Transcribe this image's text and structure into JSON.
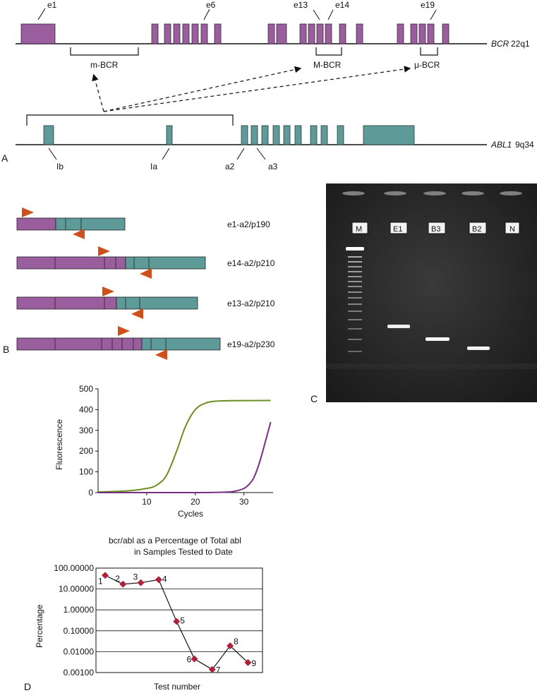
{
  "panels": {
    "a": "A",
    "b": "B",
    "c": "C",
    "d": "D"
  },
  "colors": {
    "bcr": "#9a5d9e",
    "abl": "#5e9a98",
    "primer": "#d0501c",
    "curve_green": "#6b8e23",
    "curve_purple": "#7b2d84",
    "point": "#b0203a"
  },
  "panel_a": {
    "bcr_gene": "BCR",
    "bcr_locus": "22q1",
    "abl_gene": "ABL1",
    "abl_locus": "9q34",
    "exon_labels": [
      "e1",
      "e6",
      "e13",
      "e14",
      "e19"
    ],
    "breakpoint_regions": [
      "m-BCR",
      "M-BCR",
      "μ-BCR"
    ],
    "abl_labels": [
      "Ib",
      "Ia",
      "a2",
      "a3"
    ]
  },
  "panel_b": {
    "transcripts": [
      "e1-a2/p190",
      "e14-a2/p210",
      "e13-a2/p210",
      "e19-a2/p230"
    ]
  },
  "panel_c": {
    "lanes": [
      "M",
      "E1",
      "B3",
      "B2",
      "N"
    ]
  },
  "chart_data": [
    {
      "type": "line",
      "xlabel": "Cycles",
      "ylabel": "Fluorescence",
      "xlim": [
        0,
        36
      ],
      "ylim": [
        0,
        500
      ],
      "xticks": [
        10,
        20,
        30
      ],
      "yticks": [
        0,
        100,
        200,
        300,
        400,
        500
      ],
      "series": [
        {
          "x": [
            0,
            6,
            10,
            12,
            14,
            16,
            18,
            20,
            22,
            24,
            28,
            35.5
          ],
          "values": [
            3,
            8,
            20,
            35,
            80,
            190,
            320,
            400,
            430,
            440,
            443,
            444
          ]
        },
        {
          "x": [
            0,
            20,
            26,
            28,
            30,
            31,
            32,
            33,
            34,
            35.5
          ],
          "values": [
            0,
            0,
            2,
            6,
            20,
            38,
            70,
            130,
            210,
            340
          ]
        }
      ]
    },
    {
      "type": "line",
      "title": "bcr/abl as a Percentage of Total abl\nin Samples Tested to Date",
      "title_lines": [
        "bcr/abl as a Percentage of Total abl",
        "in Samples Tested to Date"
      ],
      "xlabel": "Test number",
      "ylabel": "Percentage",
      "yscale": "log",
      "ylim": [
        0.001,
        100
      ],
      "ytick_labels": [
        "100.00000",
        "10.00000",
        "1.00000",
        "0.10000",
        "0.01000",
        "0.00100"
      ],
      "point_labels": [
        "1",
        "2",
        "3",
        "4",
        "5",
        "6",
        "7",
        "8",
        "9"
      ],
      "x": [
        1,
        2,
        3,
        4,
        5,
        6,
        7,
        8,
        9
      ],
      "values": [
        45,
        17,
        20,
        28,
        0.28,
        0.0045,
        0.0014,
        0.019,
        0.003
      ]
    }
  ]
}
